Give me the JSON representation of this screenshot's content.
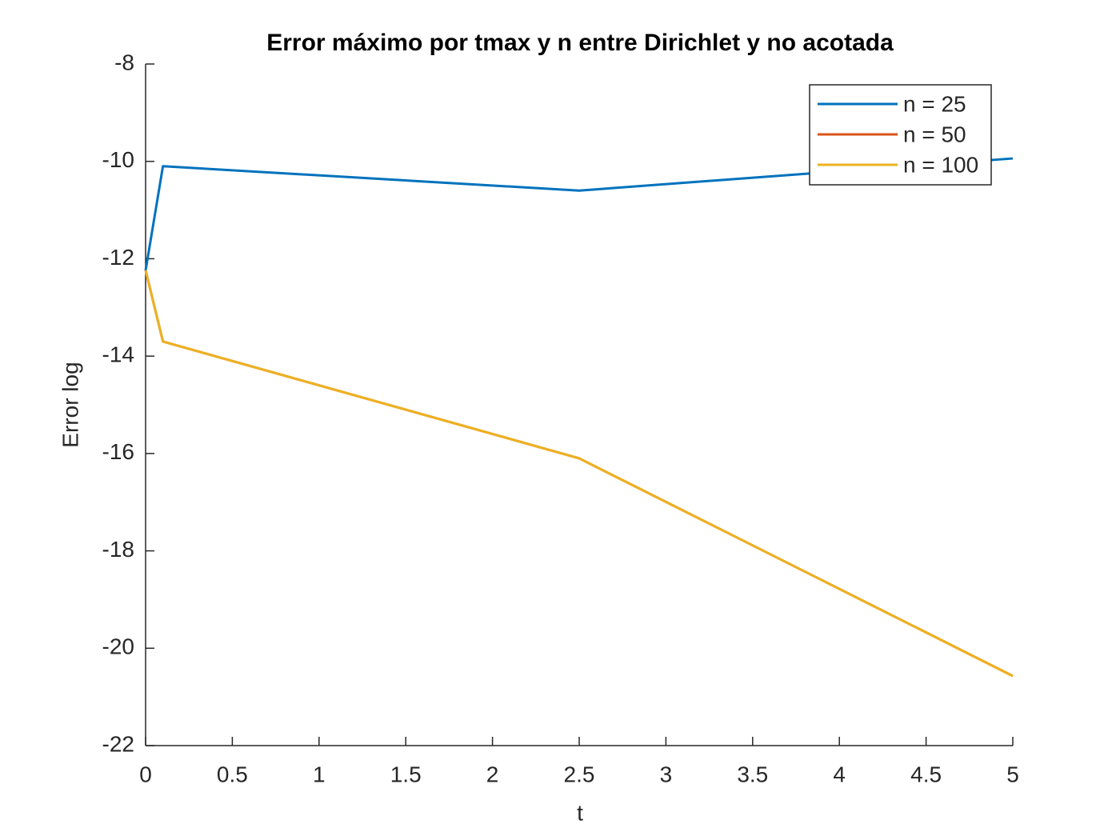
{
  "chart_data": {
    "type": "line",
    "title": "Error máximo por tmax y n entre Dirichlet y no acotada",
    "x_label": "t",
    "y_label": "Error log",
    "x": [
      0,
      0.1,
      2.5,
      5
    ],
    "series": [
      {
        "name": "n = 25",
        "color": "#0072BD",
        "values": [
          -12.24,
          -10.1,
          -10.6,
          -9.94
        ]
      },
      {
        "name": "n = 50",
        "color": "#D95319",
        "values": [
          -12.24,
          -13.7,
          -16.1,
          -20.57
        ]
      },
      {
        "name": "n = 100",
        "color": "#EDB120",
        "values": [
          -12.24,
          -13.7,
          -16.1,
          -20.57
        ]
      }
    ],
    "xlim": [
      0,
      5
    ],
    "xticks": [
      0,
      0.5,
      1,
      1.5,
      2,
      2.5,
      3,
      3.5,
      4,
      4.5,
      5
    ],
    "ylim": [
      -22,
      -8
    ],
    "yticks": [
      -22,
      -20,
      -18,
      -16,
      -14,
      -12,
      -10,
      -8
    ],
    "legend": "upper right"
  }
}
